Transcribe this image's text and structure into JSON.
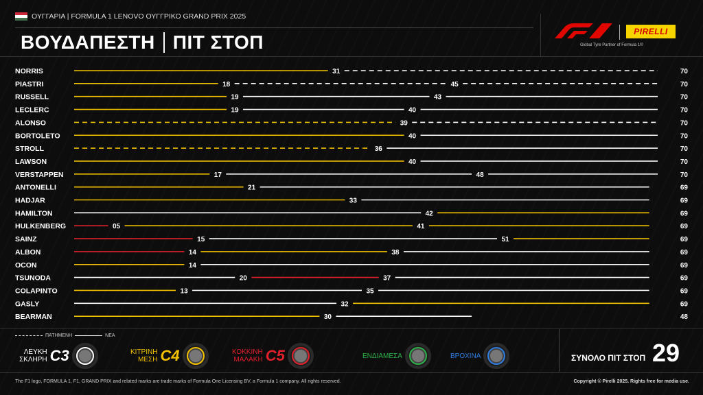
{
  "header": {
    "subtitle": "ΟΥΓΓΑΡΙΑ | FORMULA 1 LENOVO ΟΥΓΓΡΙΚΟ GRAND PRIX 2025",
    "title_left": "ΒΟΥΔΑΠΕΣΤΗ",
    "title_right": "ΠΙΤ ΣΤΟΠ",
    "pirelli_logo": "PIRELLI",
    "pirelli_tagline": "Global Tyre Partner of Formula 1®"
  },
  "colors": {
    "hard": "#ffffff",
    "medium": "#f2c200",
    "soft": "#e0202a",
    "inter": "#2db34a",
    "wet": "#2f7de0"
  },
  "chart_data": {
    "type": "bar",
    "x_max": 70,
    "drivers": [
      {
        "name": "NORRIS",
        "stints": [
          {
            "c": "medium",
            "end": 31,
            "used": false
          },
          {
            "c": "hard",
            "end": 70,
            "used": true
          }
        ],
        "labels": [
          "31",
          "70"
        ]
      },
      {
        "name": "PIASTRI",
        "stints": [
          {
            "c": "medium",
            "end": 18,
            "used": false
          },
          {
            "c": "hard",
            "end": 45,
            "used": true
          },
          {
            "c": "hard",
            "end": 70,
            "used": true
          }
        ],
        "labels": [
          "18",
          "45",
          "70"
        ]
      },
      {
        "name": "RUSSELL",
        "stints": [
          {
            "c": "medium",
            "end": 19,
            "used": false
          },
          {
            "c": "hard",
            "end": 43,
            "used": false
          },
          {
            "c": "hard",
            "end": 70,
            "used": false
          }
        ],
        "labels": [
          "19",
          "43",
          "70"
        ]
      },
      {
        "name": "LECLERC",
        "stints": [
          {
            "c": "medium",
            "end": 19,
            "used": false
          },
          {
            "c": "hard",
            "end": 40,
            "used": false
          },
          {
            "c": "hard",
            "end": 70,
            "used": false
          }
        ],
        "labels": [
          "19",
          "40",
          "70"
        ]
      },
      {
        "name": "ALONSO",
        "stints": [
          {
            "c": "medium",
            "end": 39,
            "used": true
          },
          {
            "c": "hard",
            "end": 70,
            "used": true
          }
        ],
        "labels": [
          "39",
          "70"
        ]
      },
      {
        "name": "BORTOLETO",
        "stints": [
          {
            "c": "medium",
            "end": 40,
            "used": false
          },
          {
            "c": "hard",
            "end": 70,
            "used": false
          }
        ],
        "labels": [
          "40",
          "70"
        ]
      },
      {
        "name": "STROLL",
        "stints": [
          {
            "c": "medium",
            "end": 36,
            "used": true
          },
          {
            "c": "hard",
            "end": 70,
            "used": false
          }
        ],
        "labels": [
          "36",
          "70"
        ]
      },
      {
        "name": "LAWSON",
        "stints": [
          {
            "c": "medium",
            "end": 40,
            "used": false
          },
          {
            "c": "hard",
            "end": 70,
            "used": false
          }
        ],
        "labels": [
          "40",
          "70"
        ]
      },
      {
        "name": "VERSTAPPEN",
        "stints": [
          {
            "c": "medium",
            "end": 17,
            "used": false
          },
          {
            "c": "hard",
            "end": 48,
            "used": false
          },
          {
            "c": "hard",
            "end": 70,
            "used": false
          }
        ],
        "labels": [
          "17",
          "48",
          "70"
        ]
      },
      {
        "name": "ANTONELLI",
        "stints": [
          {
            "c": "medium",
            "end": 21,
            "used": false
          },
          {
            "c": "hard",
            "end": 69,
            "used": false
          }
        ],
        "labels": [
          "21",
          "69"
        ]
      },
      {
        "name": "HADJAR",
        "stints": [
          {
            "c": "medium",
            "end": 33,
            "used": false
          },
          {
            "c": "hard",
            "end": 69,
            "used": false
          }
        ],
        "labels": [
          "33",
          "69"
        ]
      },
      {
        "name": "HAMILTON",
        "stints": [
          {
            "c": "hard",
            "end": 42,
            "used": false
          },
          {
            "c": "medium",
            "end": 69,
            "used": false
          }
        ],
        "labels": [
          "42",
          "69"
        ]
      },
      {
        "name": "HULKENBERG",
        "stints": [
          {
            "c": "soft",
            "end": 5,
            "used": false
          },
          {
            "c": "medium",
            "end": 41,
            "used": false
          },
          {
            "c": "medium",
            "end": 69,
            "used": false
          }
        ],
        "labels": [
          "05",
          "41",
          "69"
        ]
      },
      {
        "name": "SAINZ",
        "stints": [
          {
            "c": "soft",
            "end": 15,
            "used": false
          },
          {
            "c": "hard",
            "end": 51,
            "used": false
          },
          {
            "c": "medium",
            "end": 69,
            "used": false
          }
        ],
        "labels": [
          "15",
          "51",
          "69"
        ]
      },
      {
        "name": "ALBON",
        "stints": [
          {
            "c": "soft",
            "end": 14,
            "used": false
          },
          {
            "c": "medium",
            "end": 38,
            "used": false
          },
          {
            "c": "hard",
            "end": 69,
            "used": false
          }
        ],
        "labels": [
          "14",
          "38",
          "69"
        ]
      },
      {
        "name": "OCON",
        "stints": [
          {
            "c": "medium",
            "end": 14,
            "used": false
          },
          {
            "c": "hard",
            "end": 69,
            "used": false
          }
        ],
        "labels": [
          "14",
          "69"
        ]
      },
      {
        "name": "TSUNODA",
        "stints": [
          {
            "c": "hard",
            "end": 20,
            "used": false
          },
          {
            "c": "soft",
            "end": 37,
            "used": false
          },
          {
            "c": "hard",
            "end": 69,
            "used": false
          }
        ],
        "labels": [
          "20",
          "37",
          "69"
        ]
      },
      {
        "name": "COLAPINTO",
        "stints": [
          {
            "c": "medium",
            "end": 13,
            "used": false
          },
          {
            "c": "hard",
            "end": 35,
            "used": false
          },
          {
            "c": "hard",
            "end": 69,
            "used": false
          }
        ],
        "labels": [
          "13",
          "35",
          "69"
        ]
      },
      {
        "name": "GASLY",
        "stints": [
          {
            "c": "hard",
            "end": 32,
            "used": false
          },
          {
            "c": "medium",
            "end": 69,
            "used": false
          }
        ],
        "labels": [
          "32",
          "69"
        ]
      },
      {
        "name": "BEARMAN",
        "stints": [
          {
            "c": "medium",
            "end": 30,
            "used": false
          },
          {
            "c": "hard",
            "end": 48,
            "used": false
          }
        ],
        "labels": [
          "30",
          "48"
        ]
      }
    ]
  },
  "legend": {
    "used": "ΠΑΤΗΜΕΝΗ",
    "new": "ΝΕΑ",
    "compounds": [
      {
        "line1": "ΛΕΥΚΗ",
        "line2": "ΣΚΛΗΡΗ",
        "code": "C3",
        "color": "hard"
      },
      {
        "line1": "ΚΙΤΡΙΝΗ",
        "line2": "ΜΕΣΗ",
        "code": "C4",
        "color": "medium"
      },
      {
        "line1": "ΚΟΚΚΙΝΗ",
        "line2": "ΜΑΛΑΚΗ",
        "code": "C5",
        "color": "soft"
      },
      {
        "line1": "ΕΝΔΙΑΜΕΣΑ",
        "line2": "",
        "code": "",
        "color": "inter"
      },
      {
        "line1": "ΒΡΟΧΙΝΑ",
        "line2": "",
        "code": "",
        "color": "wet"
      }
    ]
  },
  "total": {
    "label": "ΣΥΝΟΛΟ ΠΙΤ ΣΤΟΠ",
    "value": "29"
  },
  "footer": {
    "left": "The F1 logo, FORMULA 1, F1, GRAND PRIX and related marks are trade marks of Formula One Licensing BV, a Formula 1 company. All rights reserved.",
    "right": "Copyright © Pirelli 2025. Rights free for media use."
  }
}
